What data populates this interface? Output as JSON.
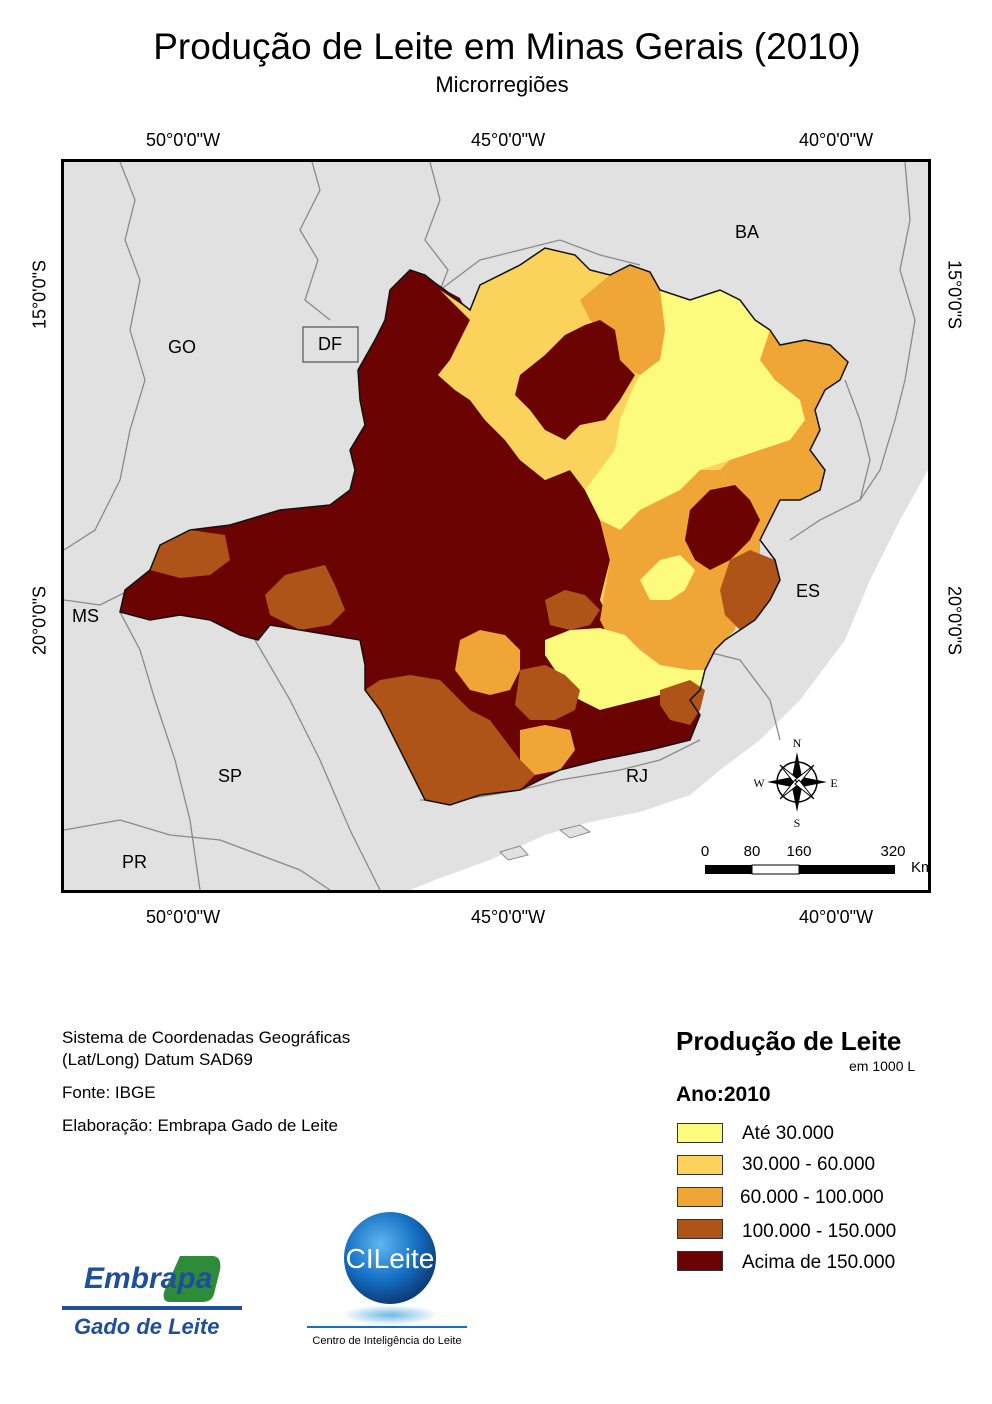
{
  "title": "Produção de Leite em Minas Gerais (2010)",
  "subtitle": "Microrregiões",
  "graticule": {
    "longitudes": [
      "50°0'0\"W",
      "45°0'0\"W",
      "40°0'0\"W"
    ],
    "latitudes": [
      "15°0'0\"S",
      "20°0'0\"S"
    ]
  },
  "states": {
    "ba": "BA",
    "go": "GO",
    "df": "DF",
    "ms": "MS",
    "es": "ES",
    "sp": "SP",
    "rj": "RJ",
    "pr": "PR"
  },
  "north_arrow": {
    "n": "N",
    "s": "S",
    "e": "E",
    "w": "W"
  },
  "scale_bar": {
    "ticks": [
      "0",
      "80",
      "160",
      "320"
    ],
    "unit": "Km"
  },
  "info": {
    "crs_line1": "Sistema de Coordenadas Geográficas",
    "crs_line2": "(Lat/Long) Datum SAD69",
    "source": "Fonte: IBGE",
    "author": "Elaboração: Embrapa Gado de Leite"
  },
  "legend": {
    "title": "Produção de Leite",
    "unit": "em 1000 L",
    "year": "Ano:2010",
    "classes": [
      {
        "label": "Até 30.000",
        "color": "#fdfb7e"
      },
      {
        "label": "30.000 - 60.000",
        "color": "#fbd25c"
      },
      {
        "label": "60.000 - 100.000",
        "color": "#f0a637"
      },
      {
        "label": "100.000 - 150.000",
        "color": "#ae5418"
      },
      {
        "label": "Acima de 150.000",
        "color": "#6a0302"
      }
    ]
  },
  "logos": {
    "embrapa_line1": "Embrapa",
    "embrapa_line2": "Gado de Leite",
    "cileite": "CILeite",
    "cileite_caption": "Centro de Inteligência do Leite"
  },
  "colors": {
    "background_land": "#e1e1e1",
    "sea": "#ffffff",
    "border_lines": "#8a8a8a"
  }
}
